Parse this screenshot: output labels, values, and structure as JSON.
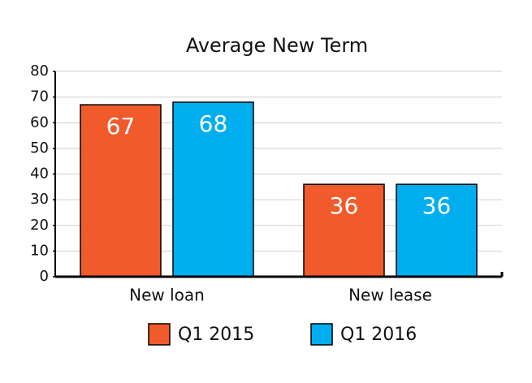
{
  "chart_data": {
    "type": "bar",
    "title": "Average New Term",
    "categories": [
      "New loan",
      "New lease"
    ],
    "series": [
      {
        "name": "Q1 2015",
        "color": "#f15a2b",
        "values": [
          67,
          36
        ]
      },
      {
        "name": "Q1 2016",
        "color": "#00aeef",
        "values": [
          68,
          36
        ]
      }
    ],
    "ylim": [
      0,
      80
    ],
    "yticks": [
      0,
      10,
      20,
      30,
      40,
      50,
      60,
      70,
      80
    ],
    "grid": true
  }
}
